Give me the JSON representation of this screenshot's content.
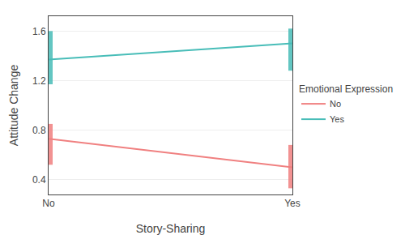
{
  "chart_data": {
    "type": "line",
    "xlabel": "Story-Sharing",
    "ylabel": "Attitude Change",
    "legend_title": "Emotional Expression",
    "categories": [
      "No",
      "Yes"
    ],
    "series": [
      {
        "name": "No",
        "color": "#F08080",
        "values": [
          0.73,
          0.5
        ],
        "ci_lower": [
          0.52,
          0.33
        ],
        "ci_upper": [
          0.85,
          0.68
        ]
      },
      {
        "name": "Yes",
        "color": "#48BDB8",
        "values": [
          1.37,
          1.5
        ],
        "ci_lower": [
          1.17,
          1.28
        ],
        "ci_upper": [
          1.6,
          1.62
        ]
      }
    ],
    "ylim": [
      0.28,
      1.72
    ],
    "yticks": [
      0.4,
      0.8,
      1.2,
      1.6
    ],
    "grid": true,
    "legend": "right"
  }
}
